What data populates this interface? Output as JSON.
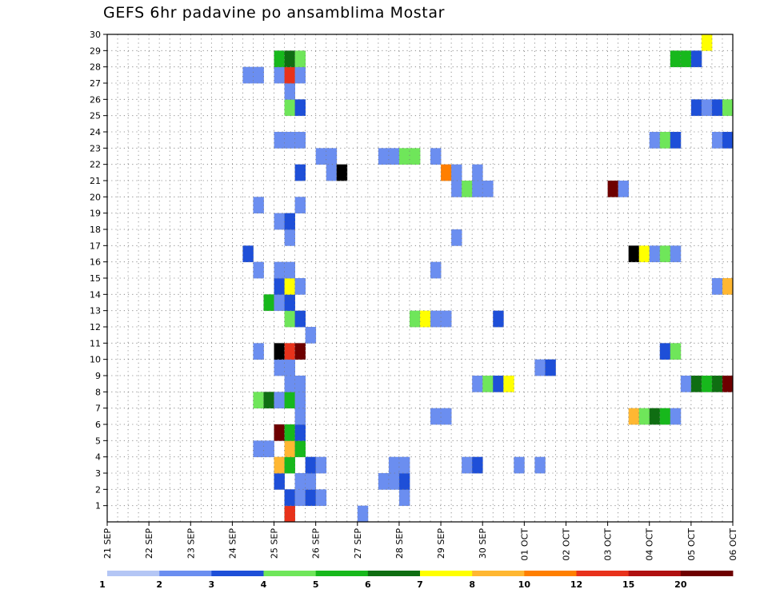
{
  "title": "GEFS 6hr padavine po ansamblima Mostar",
  "chart_data": {
    "type": "heatmap",
    "title": "GEFS 6hr padavine po ansamblima Mostar",
    "x_tick_labels": [
      "21 SEP",
      "22 SEP",
      "23 SEP",
      "24 SEP",
      "25 SEP",
      "26 SEP",
      "27 SEP",
      "28 SEP",
      "29 SEP",
      "30 SEP",
      "01 OCT",
      "02 OCT",
      "03 OCT",
      "04 OCT",
      "05 OCT",
      "06 OCT"
    ],
    "x_unit": "6-hour steps from 21 SEP",
    "x_steps": 60,
    "y_tick_labels": [
      "1",
      "2",
      "3",
      "4",
      "5",
      "6",
      "7",
      "8",
      "9",
      "10",
      "11",
      "12",
      "13",
      "14",
      "15",
      "16",
      "17",
      "18",
      "19",
      "20",
      "21",
      "22",
      "23",
      "24",
      "25",
      "26",
      "27",
      "28",
      "29",
      "30"
    ],
    "ylim": [
      0,
      30
    ],
    "grid": true,
    "legend_position": "bottom",
    "color_levels": [
      1,
      2,
      3,
      4,
      5,
      6,
      7,
      8,
      10,
      12,
      15,
      20
    ],
    "colors": [
      "#b4c6f5",
      "#6b8ef0",
      "#1e4fd8",
      "#6fe65a",
      "#17b81c",
      "#0f6e12",
      "#ffff00",
      "#ffb732",
      "#ff7f00",
      "#e8321b",
      "#b01010",
      "#6e0000"
    ],
    "cells": [
      [
        0,
        17,
        4
      ],
      [
        0,
        17,
        9
      ],
      [
        0,
        24,
        1
      ],
      [
        1,
        17,
        1
      ],
      [
        1,
        17,
        2
      ],
      [
        1,
        18,
        1
      ],
      [
        1,
        19,
        2
      ],
      [
        1,
        20,
        1
      ],
      [
        1,
        28,
        1
      ],
      [
        2,
        16,
        2
      ],
      [
        2,
        18,
        1
      ],
      [
        2,
        19,
        1
      ],
      [
        2,
        26,
        1
      ],
      [
        2,
        27,
        1
      ],
      [
        2,
        28,
        2
      ],
      [
        3,
        16,
        7
      ],
      [
        3,
        17,
        4
      ],
      [
        3,
        19,
        2
      ],
      [
        3,
        20,
        1
      ],
      [
        3,
        27,
        1
      ],
      [
        3,
        28,
        1
      ],
      [
        3,
        34,
        1
      ],
      [
        3,
        35,
        2
      ],
      [
        3,
        39,
        1
      ],
      [
        3,
        41,
        1
      ],
      [
        4,
        14,
        1
      ],
      [
        4,
        15,
        1
      ],
      [
        4,
        17,
        7
      ],
      [
        4,
        18,
        4
      ],
      [
        5,
        16,
        11
      ],
      [
        5,
        17,
        4
      ],
      [
        5,
        18,
        2
      ],
      [
        6,
        18,
        1
      ],
      [
        6,
        31,
        1
      ],
      [
        6,
        32,
        1
      ],
      [
        6,
        50,
        7
      ],
      [
        6,
        51,
        3
      ],
      [
        6,
        52,
        5
      ],
      [
        6,
        53,
        4
      ],
      [
        6,
        54,
        1
      ],
      [
        7,
        14,
        3
      ],
      [
        7,
        15,
        5
      ],
      [
        7,
        16,
        1
      ],
      [
        7,
        17,
        4
      ],
      [
        7,
        18,
        1
      ],
      [
        8,
        17,
        1
      ],
      [
        8,
        18,
        1
      ],
      [
        8,
        35,
        1
      ],
      [
        8,
        36,
        3
      ],
      [
        8,
        37,
        2
      ],
      [
        8,
        38,
        6
      ],
      [
        8,
        55,
        1
      ],
      [
        8,
        56,
        5
      ],
      [
        8,
        57,
        4
      ],
      [
        8,
        58,
        5
      ],
      [
        8,
        59,
        11
      ],
      [
        9,
        16,
        1
      ],
      [
        9,
        17,
        1
      ],
      [
        9,
        41,
        1
      ],
      [
        9,
        42,
        2
      ],
      [
        10,
        14,
        1
      ],
      [
        10,
        16,
        12
      ],
      [
        10,
        17,
        9
      ],
      [
        10,
        18,
        11
      ],
      [
        10,
        53,
        2
      ],
      [
        10,
        54,
        3
      ],
      [
        11,
        19,
        1
      ],
      [
        12,
        17,
        3
      ],
      [
        12,
        18,
        2
      ],
      [
        12,
        29,
        3
      ],
      [
        12,
        30,
        6
      ],
      [
        12,
        31,
        1
      ],
      [
        12,
        32,
        1
      ],
      [
        12,
        37,
        2
      ],
      [
        13,
        15,
        4
      ],
      [
        13,
        16,
        1
      ],
      [
        13,
        17,
        2
      ],
      [
        14,
        16,
        2
      ],
      [
        14,
        17,
        6
      ],
      [
        14,
        18,
        1
      ],
      [
        14,
        58,
        1
      ],
      [
        14,
        59,
        7
      ],
      [
        15,
        14,
        1
      ],
      [
        15,
        16,
        1
      ],
      [
        15,
        17,
        1
      ],
      [
        15,
        31,
        1
      ],
      [
        16,
        13,
        2
      ],
      [
        16,
        50,
        12
      ],
      [
        16,
        51,
        6
      ],
      [
        16,
        52,
        1
      ],
      [
        16,
        53,
        3
      ],
      [
        16,
        54,
        1
      ],
      [
        17,
        17,
        1
      ],
      [
        17,
        33,
        1
      ],
      [
        18,
        16,
        1
      ],
      [
        18,
        17,
        2
      ],
      [
        19,
        14,
        1
      ],
      [
        19,
        18,
        1
      ],
      [
        20,
        33,
        1
      ],
      [
        20,
        34,
        3
      ],
      [
        20,
        35,
        1
      ],
      [
        20,
        36,
        1
      ],
      [
        20,
        48,
        11
      ],
      [
        20,
        49,
        1
      ],
      [
        21,
        18,
        2
      ],
      [
        21,
        21,
        1
      ],
      [
        21,
        22,
        12
      ],
      [
        21,
        32,
        8
      ],
      [
        21,
        33,
        1
      ],
      [
        21,
        35,
        1
      ],
      [
        22,
        20,
        1
      ],
      [
        22,
        21,
        1
      ],
      [
        22,
        26,
        1
      ],
      [
        22,
        27,
        1
      ],
      [
        22,
        28,
        3
      ],
      [
        22,
        29,
        3
      ],
      [
        22,
        31,
        1
      ],
      [
        23,
        16,
        1
      ],
      [
        23,
        17,
        1
      ],
      [
        23,
        18,
        1
      ],
      [
        23,
        52,
        1
      ],
      [
        23,
        53,
        3
      ],
      [
        23,
        54,
        2
      ],
      [
        23,
        58,
        1
      ],
      [
        23,
        59,
        2
      ],
      [
        25,
        17,
        3
      ],
      [
        25,
        18,
        2
      ],
      [
        25,
        56,
        2
      ],
      [
        25,
        57,
        1
      ],
      [
        25,
        58,
        2
      ],
      [
        25,
        59,
        3
      ],
      [
        26,
        17,
        1
      ],
      [
        27,
        13,
        1
      ],
      [
        27,
        14,
        1
      ],
      [
        27,
        16,
        1
      ],
      [
        27,
        17,
        9
      ],
      [
        27,
        18,
        1
      ],
      [
        28,
        16,
        4
      ],
      [
        28,
        17,
        5
      ],
      [
        28,
        18,
        3
      ],
      [
        28,
        54,
        4
      ],
      [
        28,
        55,
        4
      ],
      [
        28,
        56,
        2
      ],
      [
        29,
        57,
        6
      ]
    ]
  }
}
